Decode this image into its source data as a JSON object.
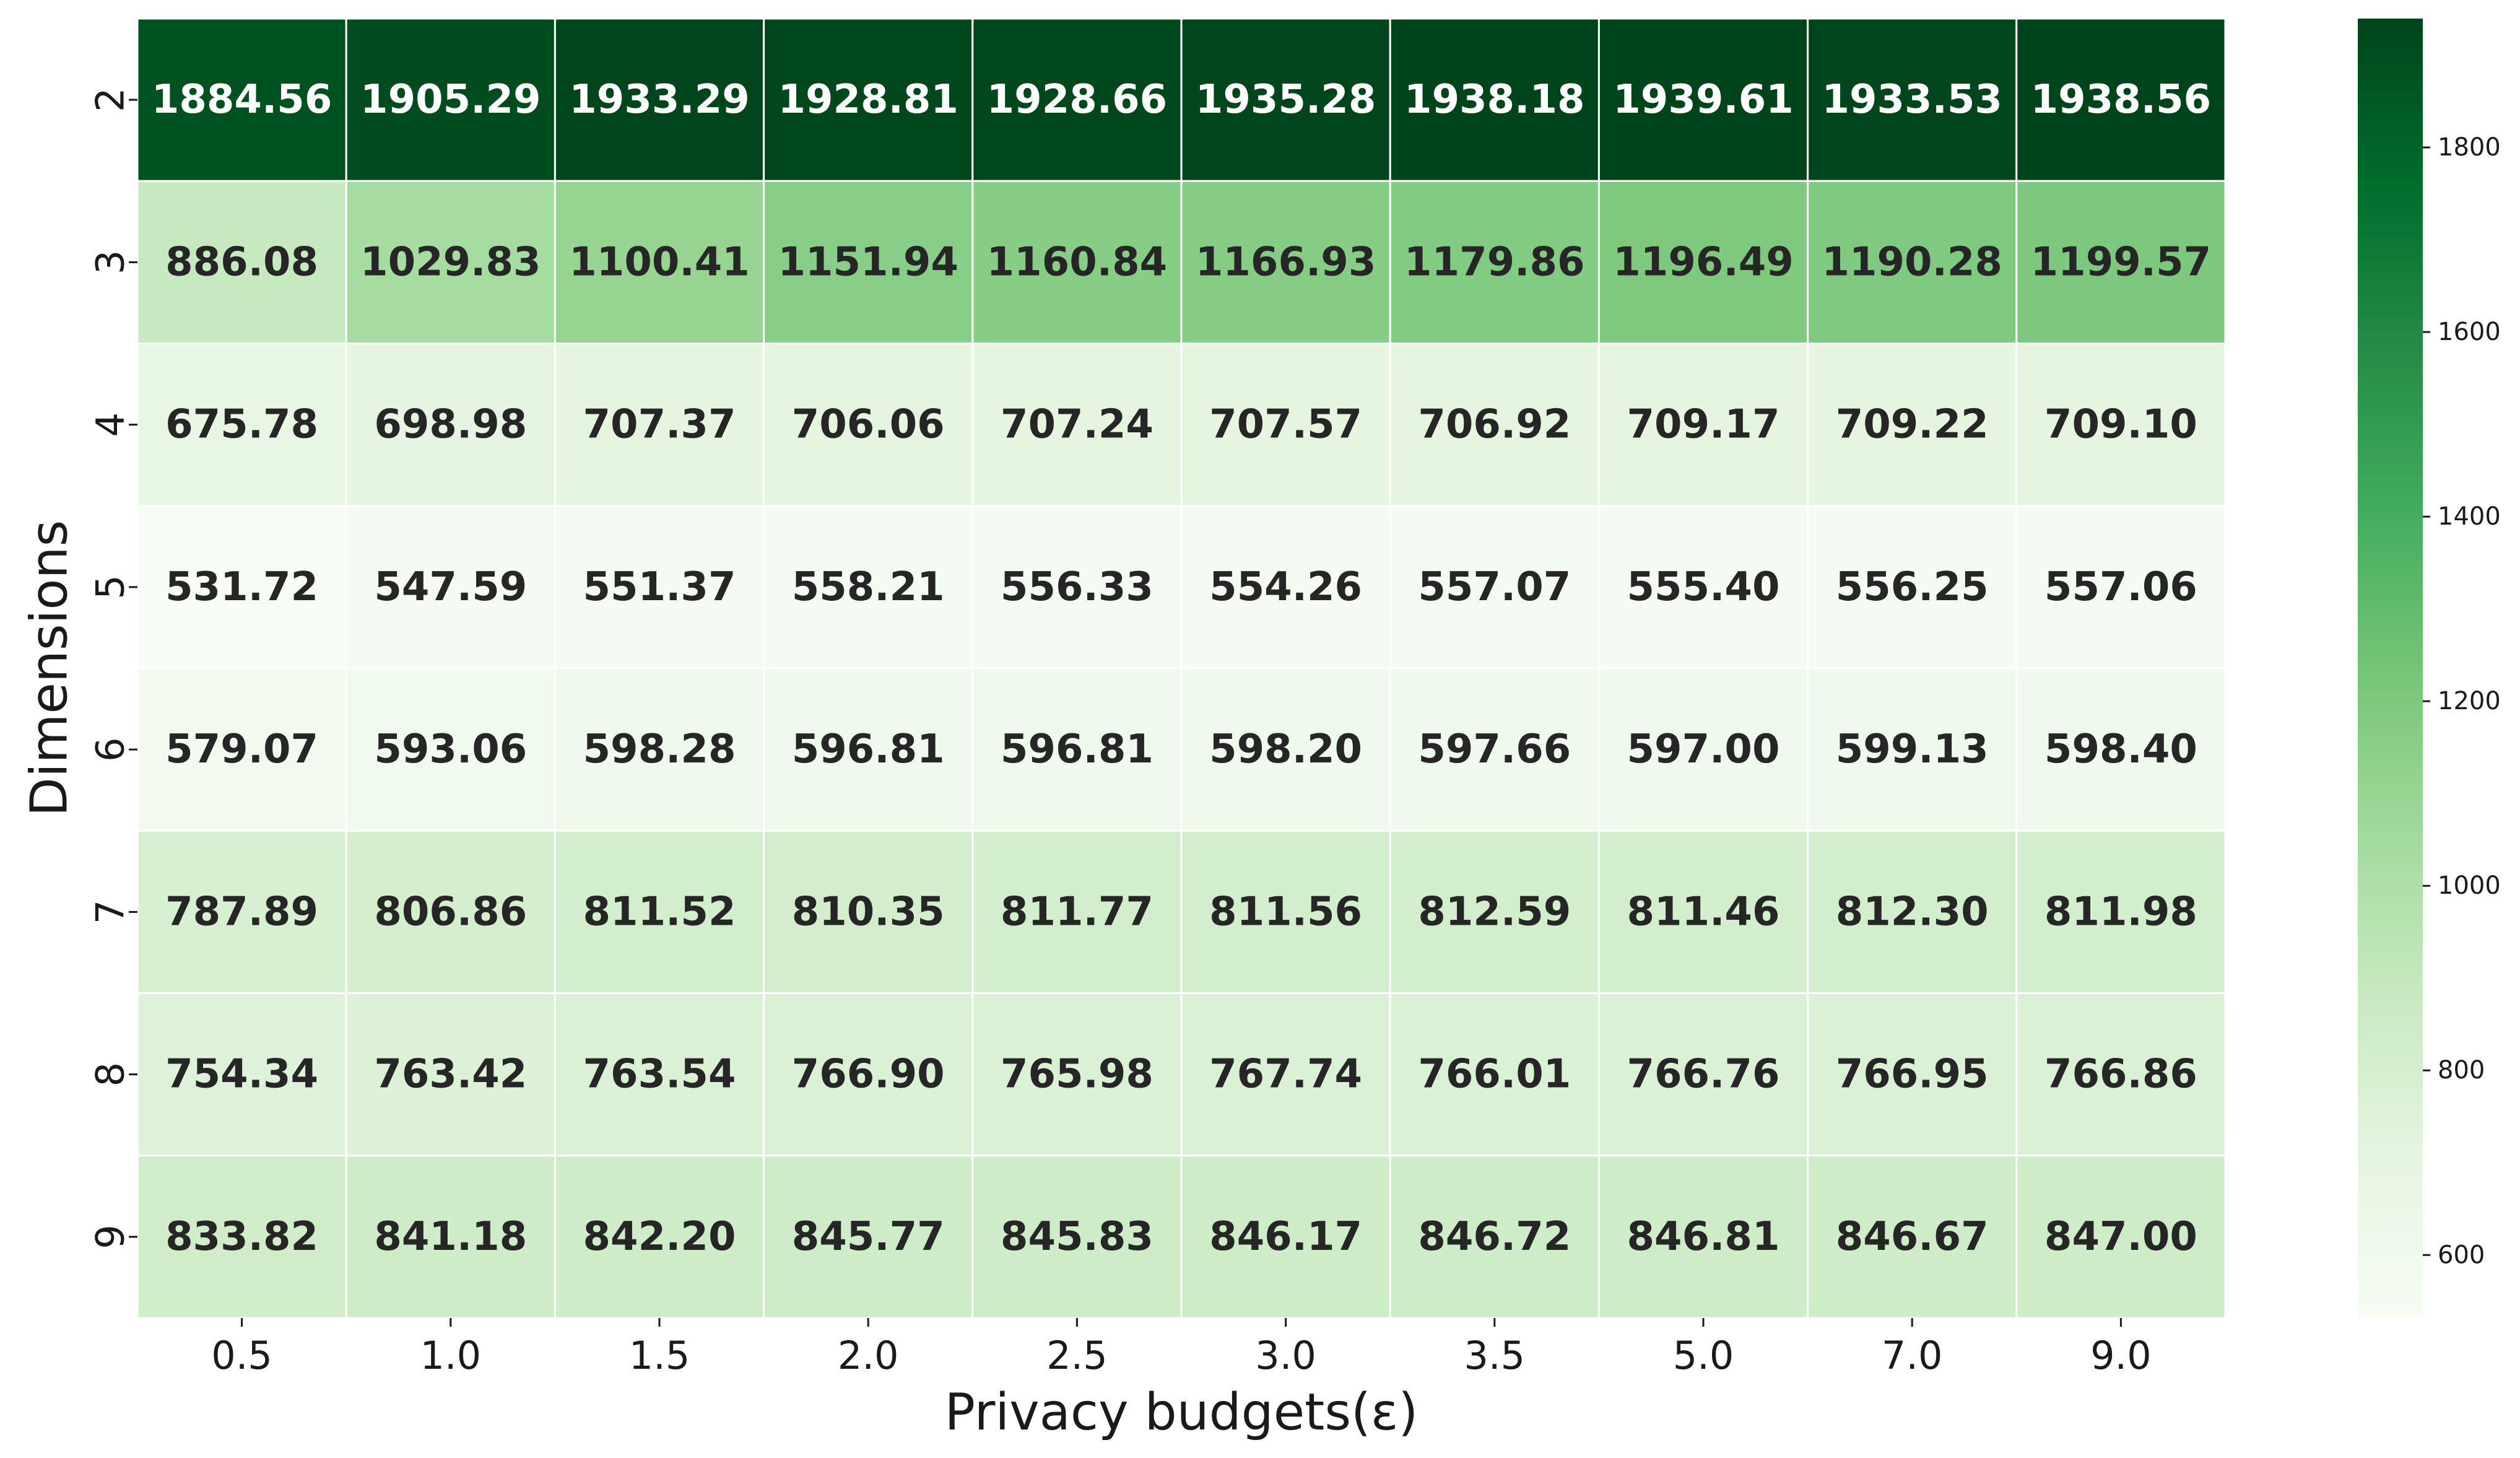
{
  "chart_data": {
    "type": "heatmap",
    "xlabel": "Privacy budgets(ε)",
    "ylabel": "Dimensions",
    "x_categories": [
      "0.5",
      "1.0",
      "1.5",
      "2.0",
      "2.5",
      "3.0",
      "3.5",
      "5.0",
      "7.0",
      "9.0"
    ],
    "y_categories": [
      "2",
      "3",
      "4",
      "5",
      "6",
      "7",
      "8",
      "9"
    ],
    "values": [
      [
        "1884.56",
        "1905.29",
        "1933.29",
        "1928.81",
        "1928.66",
        "1935.28",
        "1938.18",
        "1939.61",
        "1933.53",
        "1938.56"
      ],
      [
        "886.08",
        "1029.83",
        "1100.41",
        "1151.94",
        "1160.84",
        "1166.93",
        "1179.86",
        "1196.49",
        "1190.28",
        "1199.57"
      ],
      [
        "675.78",
        "698.98",
        "707.37",
        "706.06",
        "707.24",
        "707.57",
        "706.92",
        "709.17",
        "709.22",
        "709.10"
      ],
      [
        "531.72",
        "547.59",
        "551.37",
        "558.21",
        "556.33",
        "554.26",
        "557.07",
        "555.40",
        "556.25",
        "557.06"
      ],
      [
        "579.07",
        "593.06",
        "598.28",
        "596.81",
        "596.81",
        "598.20",
        "597.66",
        "597.00",
        "599.13",
        "598.40"
      ],
      [
        "787.89",
        "806.86",
        "811.52",
        "810.35",
        "811.77",
        "811.56",
        "812.59",
        "811.46",
        "812.30",
        "811.98"
      ],
      [
        "754.34",
        "763.42",
        "763.54",
        "766.90",
        "765.98",
        "767.74",
        "766.01",
        "766.76",
        "766.95",
        "766.86"
      ],
      [
        "833.82",
        "841.18",
        "842.20",
        "845.77",
        "845.83",
        "846.17",
        "846.72",
        "846.81",
        "846.67",
        "847.00"
      ]
    ],
    "colormap": "Greens",
    "colorbar": {
      "vmin": 531.72,
      "vmax": 1939.61,
      "ticks": [
        "600",
        "800",
        "1000",
        "1200",
        "1400",
        "1600",
        "1800"
      ]
    },
    "cell_border_color": "#ffffff",
    "text_color_dark": "#262626",
    "text_color_light": "#ffffff"
  }
}
